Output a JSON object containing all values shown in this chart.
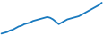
{
  "x": [
    0,
    1,
    2,
    3,
    4,
    5,
    6,
    7,
    8,
    9,
    10,
    11,
    12,
    13,
    14,
    15,
    16,
    17,
    18,
    19,
    20,
    21,
    22,
    23,
    24,
    25,
    26,
    27,
    28,
    29,
    30,
    31,
    32,
    33,
    34,
    35
  ],
  "y": [
    1,
    2,
    3,
    5,
    6,
    8,
    10,
    11,
    13,
    14,
    15,
    17,
    18,
    19,
    20,
    21,
    22,
    21,
    19,
    16,
    13,
    15,
    17,
    19,
    20,
    21,
    22,
    23,
    25,
    27,
    29,
    31,
    33,
    35,
    37,
    40
  ],
  "line_color": "#1a7abf",
  "line_width": 1.3,
  "background_color": "#ffffff",
  "ylim": [
    -2,
    44
  ],
  "xlim": [
    -0.5,
    35.5
  ]
}
